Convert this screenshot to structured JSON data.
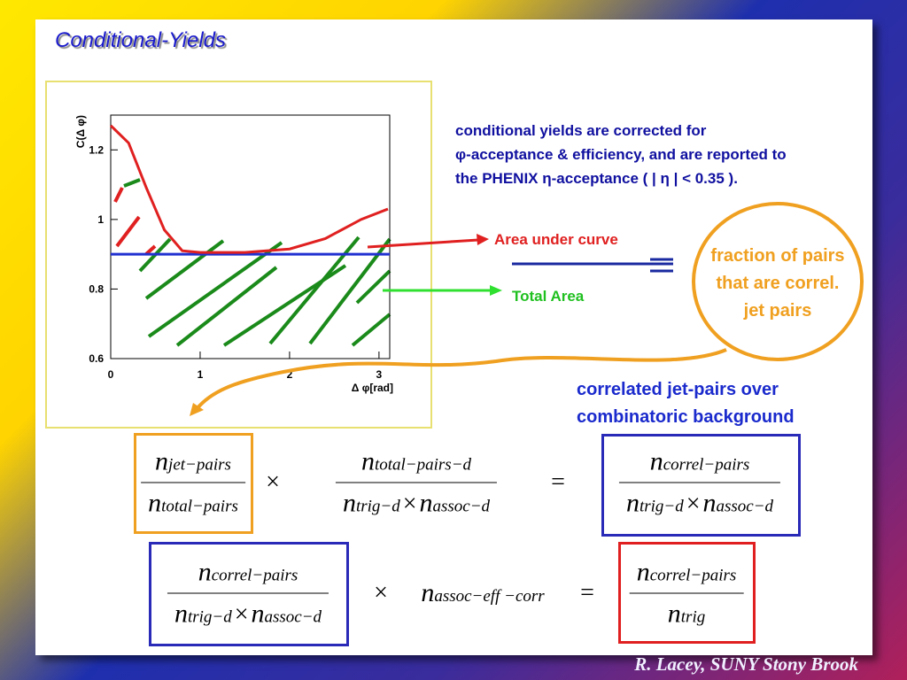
{
  "title": "Conditional-Yields",
  "chart_data": {
    "type": "line",
    "x": [
      0,
      0.2,
      0.4,
      0.6,
      0.8,
      1.0,
      1.5,
      2.0,
      2.4,
      2.8,
      3.1
    ],
    "series": [
      {
        "color": "#e02020",
        "values": [
          1.27,
          1.22,
          1.09,
          0.97,
          0.91,
          0.905,
          0.905,
          0.915,
          0.945,
          1.0,
          1.03
        ]
      }
    ],
    "reference_line": {
      "value": 0.9,
      "color": "#2030d0"
    },
    "xlabel": "Δ φ[rad]",
    "ylabel": "C(Δ φ)",
    "xlim": [
      0,
      3.12
    ],
    "ylim": [
      0.6,
      1.3
    ],
    "xticks": [
      0,
      1,
      2,
      3
    ],
    "yticks": [
      0.6,
      0.8,
      1,
      1.2
    ]
  },
  "notes": [
    "conditional yields are corrected for",
    "φ-acceptance & efficiency, and are reported to",
    "the PHENIX η-acceptance  (  | η | < 0.35 )."
  ],
  "area_under_curve": "Area under curve",
  "total_area": "Total Area",
  "fraction_text": [
    "fraction of pairs",
    "that are correl.",
    "jet pairs"
  ],
  "correlated_text": [
    "correlated jet-pairs over",
    "combinatoric background"
  ],
  "equations": [
    [
      {
        "num": [
          {
            "base": "n",
            "sub": "jet−pairs"
          }
        ],
        "den": [
          {
            "base": "n",
            "sub": "total−pairs"
          }
        ]
      },
      "×",
      {
        "num": [
          {
            "base": "n",
            "sub": "total−pairs−d"
          }
        ],
        "den": [
          {
            "base": "n",
            "sub": "trig−d"
          },
          "×",
          {
            "base": "n",
            "sub": "assoc−d"
          }
        ]
      },
      "=",
      {
        "num": [
          {
            "base": "n",
            "sub": "correl−pairs"
          }
        ],
        "den": [
          {
            "base": "n",
            "sub": "trig−d"
          },
          "×",
          {
            "base": "n",
            "sub": "assoc−d"
          }
        ]
      }
    ],
    [
      {
        "num": [
          {
            "base": "n",
            "sub": "correl−pairs"
          }
        ],
        "den": [
          {
            "base": "n",
            "sub": "trig−d"
          },
          "×",
          {
            "base": "n",
            "sub": "assoc−d"
          }
        ]
      },
      "×",
      {
        "base": "n",
        "sub": "assoc−eff −corr"
      },
      "=",
      {
        "num": [
          {
            "base": "n",
            "sub": "correl−pairs"
          }
        ],
        "den": [
          {
            "base": "n",
            "sub": "trig"
          }
        ]
      }
    ]
  ],
  "footer": "R. Lacey, SUNY  Stony Brook"
}
